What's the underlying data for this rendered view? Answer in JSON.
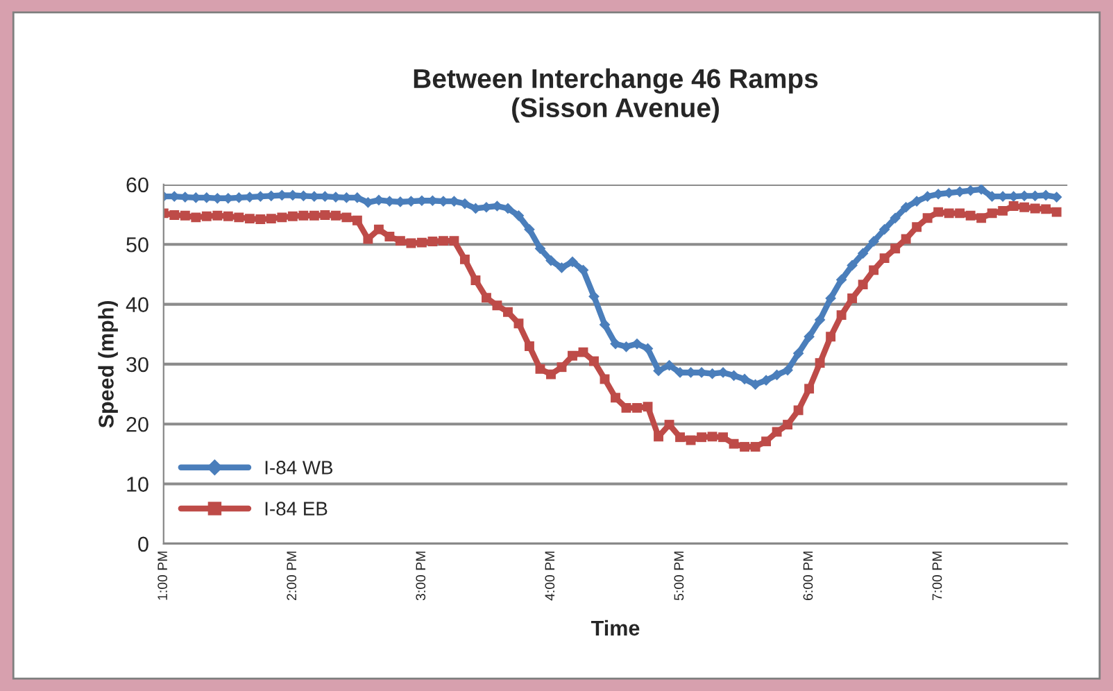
{
  "chart_data": {
    "type": "line",
    "title": "Between Interchange 46 Ramps\n(Sisson Avenue)",
    "xlabel": "Time",
    "ylabel": "Speed (mph)",
    "x": [
      13,
      13.0833,
      13.1667,
      13.25,
      13.3333,
      13.4167,
      13.5,
      13.5833,
      13.6667,
      13.75,
      13.8333,
      13.9167,
      14,
      14.0833,
      14.1667,
      14.25,
      14.3333,
      14.4167,
      14.5,
      14.5833,
      14.6667,
      14.75,
      14.8333,
      14.9167,
      15,
      15.0833,
      15.1667,
      15.25,
      15.3333,
      15.4167,
      15.5,
      15.5833,
      15.6667,
      15.75,
      15.8333,
      15.9167,
      16,
      16.0833,
      16.1667,
      16.25,
      16.3333,
      16.4167,
      16.5,
      16.5833,
      16.6667,
      16.75,
      16.8333,
      16.9167,
      17,
      17.0833,
      17.1667,
      17.25,
      17.3333,
      17.4167,
      17.5,
      17.5833,
      17.6667,
      17.75,
      17.8333,
      17.9167,
      18,
      18.0833,
      18.1667,
      18.25,
      18.3333,
      18.4167,
      18.5,
      18.5833,
      18.6667,
      18.75,
      18.8333,
      18.9167,
      19,
      19.0833,
      19.1667,
      19.25,
      19.3333,
      19.4167,
      19.5,
      19.5833,
      19.6667,
      19.75,
      19.8333,
      19.9167
    ],
    "series": [
      {
        "name": "I-84 WB",
        "color": "#4a7ebb",
        "marker": "diamond",
        "values": [
          58.0,
          58.0,
          57.9,
          57.8,
          57.8,
          57.7,
          57.7,
          57.8,
          57.9,
          58.0,
          58.1,
          58.2,
          58.2,
          58.1,
          58.0,
          58.0,
          57.9,
          57.8,
          57.8,
          57.0,
          57.4,
          57.2,
          57.1,
          57.2,
          57.3,
          57.3,
          57.2,
          57.2,
          56.8,
          56.0,
          56.2,
          56.4,
          56.0,
          54.8,
          52.5,
          49.3,
          47.3,
          46.1,
          47.1,
          45.7,
          41.3,
          36.6,
          33.4,
          32.9,
          33.4,
          32.6,
          28.9,
          29.8,
          28.6,
          28.6,
          28.6,
          28.4,
          28.6,
          28.1,
          27.5,
          26.6,
          27.3,
          28.2,
          29.0,
          31.8,
          34.6,
          37.4,
          41.0,
          44.1,
          46.5,
          48.5,
          50.5,
          52.5,
          54.4,
          56.2,
          57.2,
          58.0,
          58.4,
          58.6,
          58.8,
          59.0,
          59.2,
          58.0,
          58.0,
          58.0,
          58.1,
          58.1,
          58.2,
          57.9
        ]
      },
      {
        "name": "I-84 EB",
        "color": "#be4b48",
        "marker": "square",
        "values": [
          55.2,
          54.9,
          54.8,
          54.5,
          54.7,
          54.8,
          54.7,
          54.5,
          54.3,
          54.2,
          54.3,
          54.5,
          54.7,
          54.8,
          54.8,
          54.9,
          54.8,
          54.5,
          54.0,
          50.9,
          52.5,
          51.3,
          50.6,
          50.2,
          50.3,
          50.5,
          50.6,
          50.6,
          47.5,
          44.0,
          41.1,
          39.8,
          38.7,
          36.8,
          33.0,
          29.2,
          28.3,
          29.5,
          31.4,
          32.0,
          30.5,
          27.5,
          24.4,
          22.7,
          22.7,
          22.9,
          17.9,
          19.9,
          17.8,
          17.3,
          17.8,
          17.9,
          17.8,
          16.7,
          16.2,
          16.2,
          17.1,
          18.7,
          19.9,
          22.3,
          25.9,
          30.2,
          34.6,
          38.2,
          41.0,
          43.3,
          45.7,
          47.7,
          49.3,
          50.9,
          52.9,
          54.4,
          55.4,
          55.2,
          55.2,
          54.8,
          54.4,
          55.2,
          55.6,
          56.4,
          56.2,
          56.0,
          55.9,
          55.4
        ]
      }
    ],
    "xlim": [
      13,
      20.0
    ],
    "xticks": [
      {
        "value": 13,
        "label": "1:00 PM"
      },
      {
        "value": 14,
        "label": "2:00 PM"
      },
      {
        "value": 15,
        "label": "3:00 PM"
      },
      {
        "value": 16,
        "label": "4:00 PM"
      },
      {
        "value": 17,
        "label": "5:00 PM"
      },
      {
        "value": 18,
        "label": "6:00 PM"
      },
      {
        "value": 19,
        "label": "7:00 PM"
      }
    ],
    "ylim": [
      0,
      60
    ],
    "yticks": [
      0,
      10,
      20,
      30,
      40,
      50,
      60
    ],
    "grid": "y",
    "legend": "bottom left",
    "line_style": "solid"
  }
}
